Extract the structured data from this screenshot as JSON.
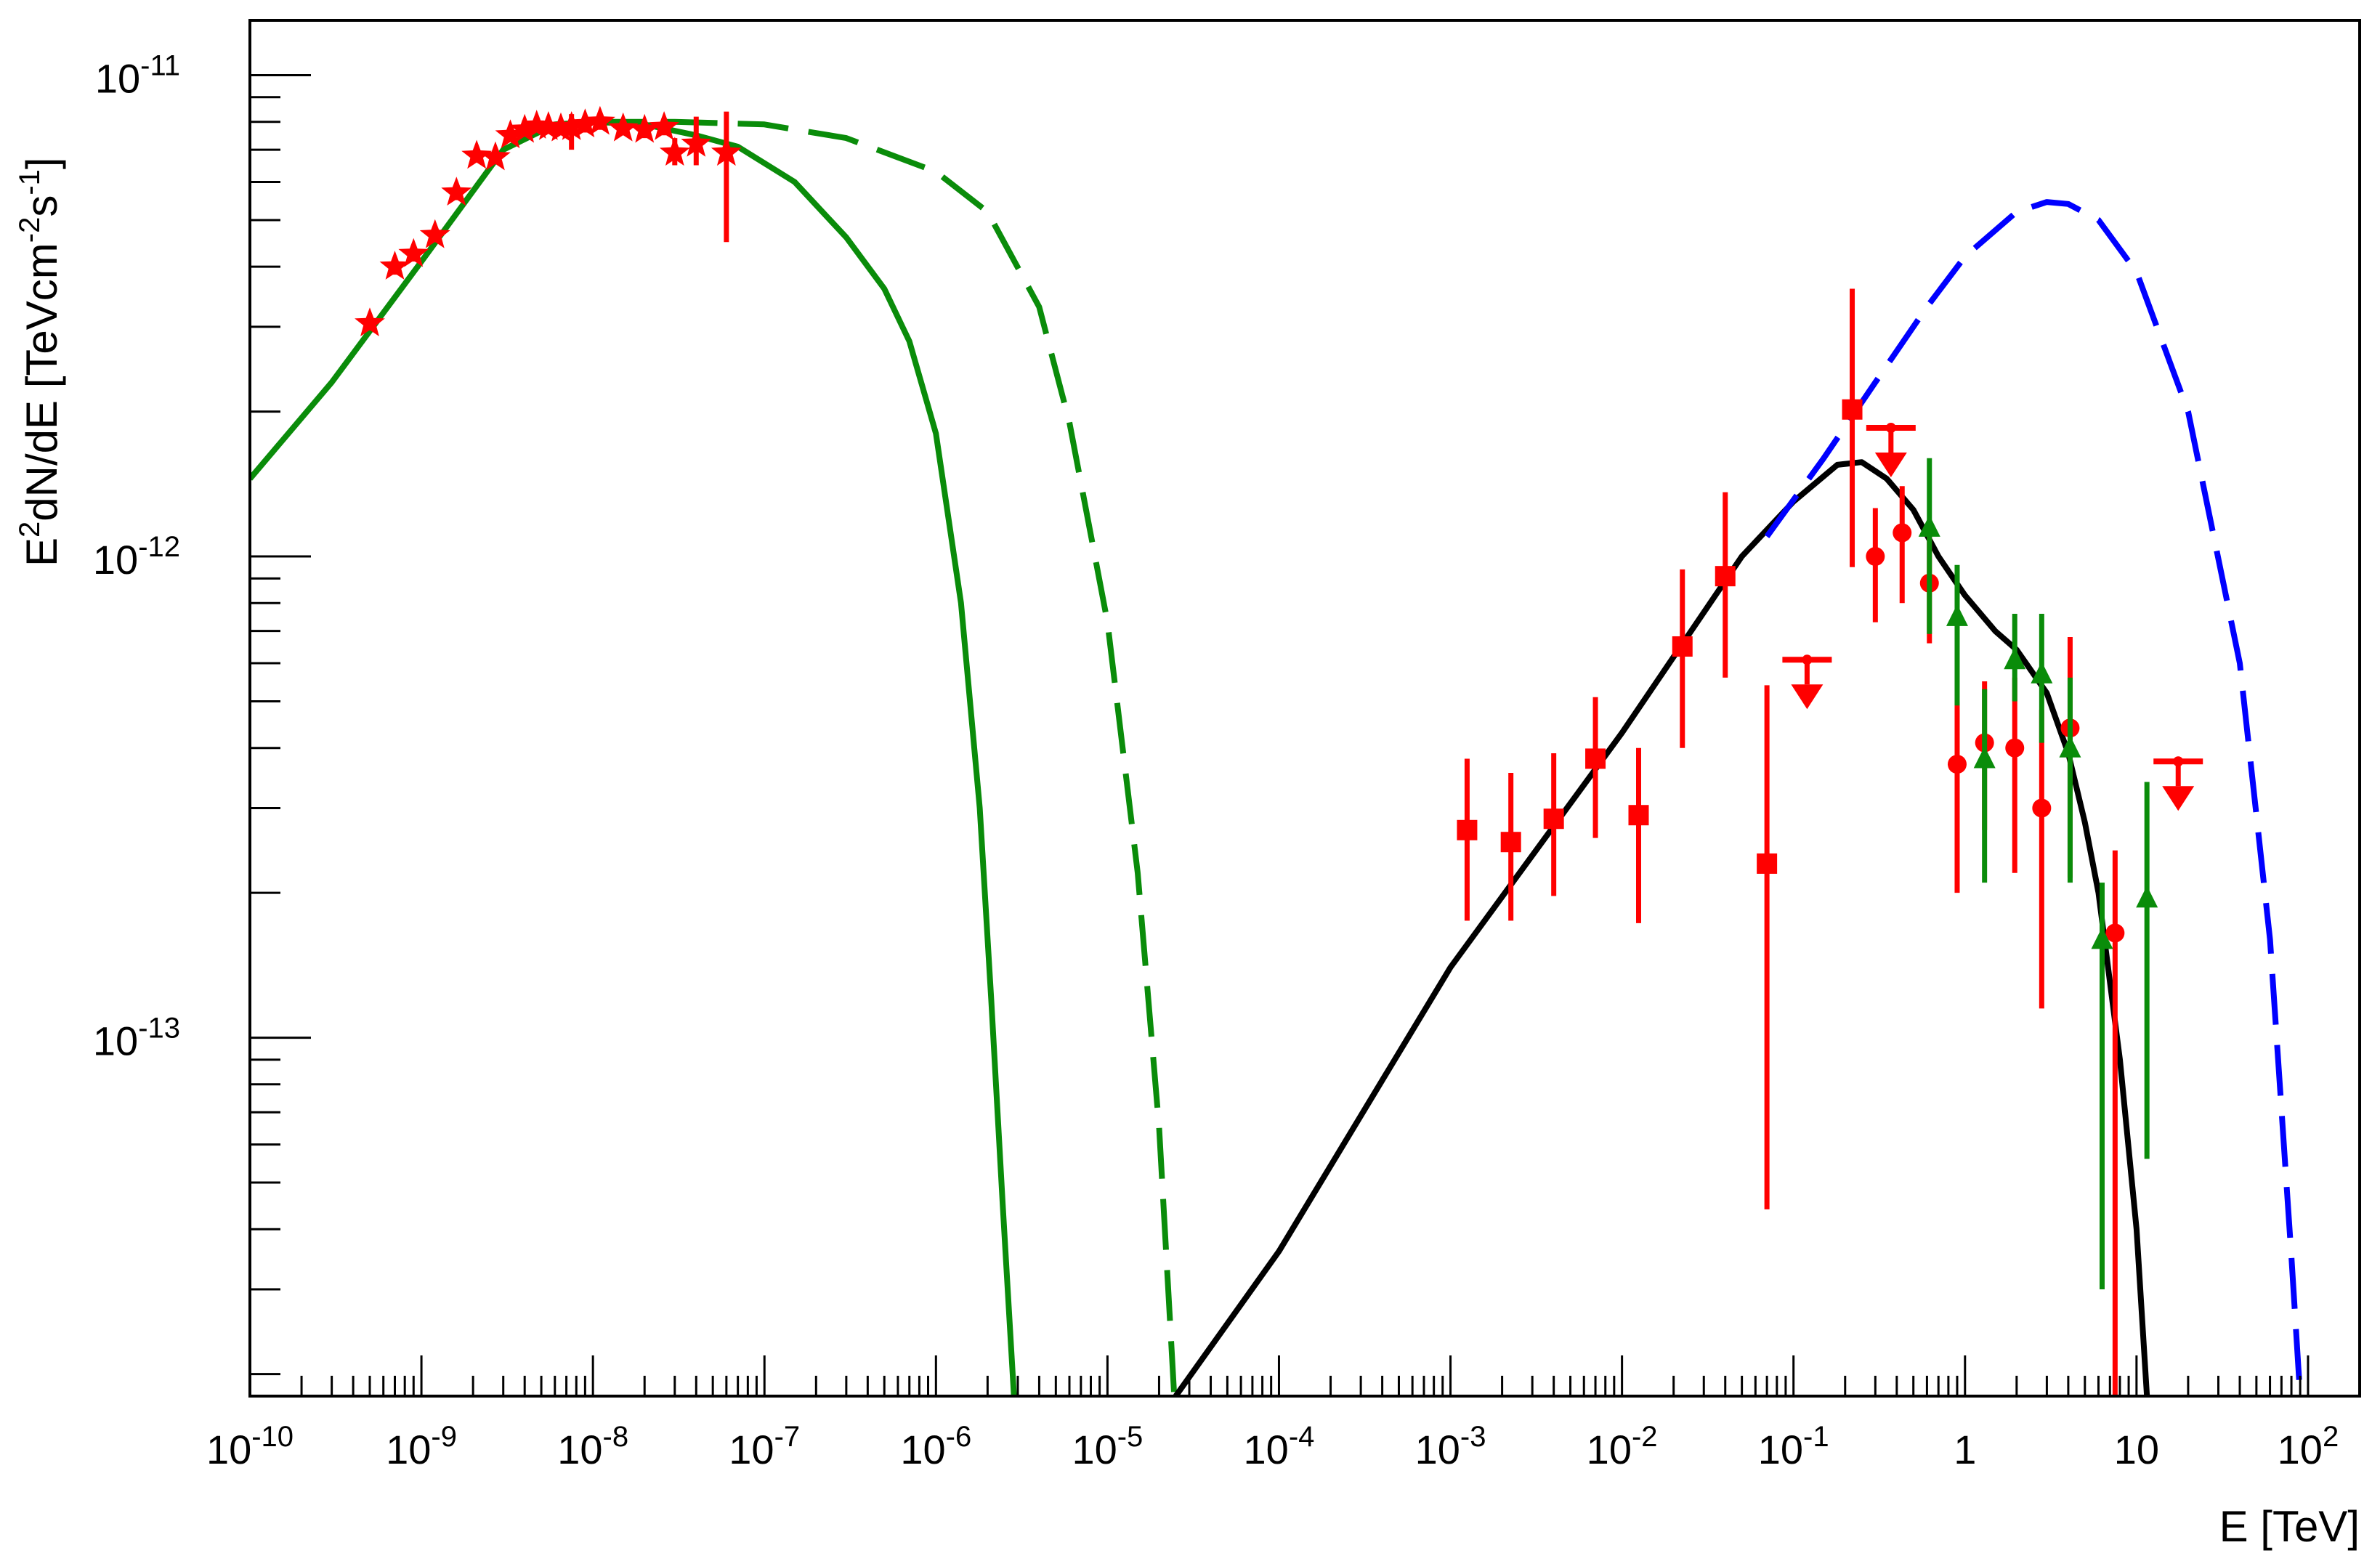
{
  "chart_data": {
    "type": "scatter",
    "xlabel": "E [TeV]",
    "ylabel_parts": [
      "E",
      "2",
      "dN/dE [TeVcm",
      "-2",
      "s",
      "-1",
      "]"
    ],
    "xscale": "log",
    "yscale": "log",
    "xlim": [
      1e-10,
      200
    ],
    "ylim": [
      1.8e-14,
      1.3e-11
    ],
    "x_tick_labels": [
      {
        "x": 1e-10,
        "base": "10",
        "exp": "-10"
      },
      {
        "x": 1e-09,
        "base": "10",
        "exp": "-9"
      },
      {
        "x": 1e-08,
        "base": "10",
        "exp": "-8"
      },
      {
        "x": 1e-07,
        "base": "10",
        "exp": "-7"
      },
      {
        "x": 1e-06,
        "base": "10",
        "exp": "-6"
      },
      {
        "x": 1e-05,
        "base": "10",
        "exp": "-5"
      },
      {
        "x": 0.0001,
        "base": "10",
        "exp": "-4"
      },
      {
        "x": 0.001,
        "base": "10",
        "exp": "-3"
      },
      {
        "x": 0.01,
        "base": "10",
        "exp": "-2"
      },
      {
        "x": 0.1,
        "base": "10",
        "exp": "-1"
      },
      {
        "x": 1,
        "base": "1",
        "exp": ""
      },
      {
        "x": 10,
        "base": "10",
        "exp": ""
      },
      {
        "x": 100,
        "base": "10",
        "exp": "2"
      }
    ],
    "y_tick_labels": [
      {
        "y": 1e-11,
        "base": "10",
        "exp": "-11"
      },
      {
        "y": 1e-12,
        "base": "10",
        "exp": "-12"
      },
      {
        "y": 1e-13,
        "base": "10",
        "exp": "-13"
      }
    ],
    "colors": {
      "red": "#ff0000",
      "green": "#0a8c0a",
      "blue": "#0000ff",
      "black": "#000000"
    },
    "series": [
      {
        "color": "red",
        "marker": "star",
        "points": [
          {
            "x": 5e-10,
            "y": 3.05e-12,
            "ylo": 2.95e-12,
            "yhi": 3.15e-12
          },
          {
            "x": 7e-10,
            "y": 4e-12,
            "ylo": 3.85e-12,
            "yhi": 4.15e-12
          },
          {
            "x": 9e-10,
            "y": 4.25e-12,
            "ylo": 4.1e-12,
            "yhi": 4.4e-12
          },
          {
            "x": 1.2e-09,
            "y": 4.65e-12,
            "ylo": 4.5e-12,
            "yhi": 4.8e-12
          },
          {
            "x": 1.6e-09,
            "y": 5.7e-12,
            "ylo": 5.5e-12,
            "yhi": 5.9e-12
          },
          {
            "x": 2.1e-09,
            "y": 6.8e-12,
            "ylo": 6.6e-12,
            "yhi": 7e-12
          },
          {
            "x": 2.7e-09,
            "y": 6.75e-12,
            "ylo": 6.55e-12,
            "yhi": 6.95e-12
          },
          {
            "x": 3.3e-09,
            "y": 7.5e-12,
            "ylo": 7.3e-12,
            "yhi": 7.7e-12
          },
          {
            "x": 4e-09,
            "y": 7.7e-12,
            "ylo": 7.45e-12,
            "yhi": 7.95e-12
          },
          {
            "x": 4.7e-09,
            "y": 7.85e-12,
            "ylo": 7.6e-12,
            "yhi": 8.1e-12
          },
          {
            "x": 5.5e-09,
            "y": 7.8e-12,
            "ylo": 7.55e-12,
            "yhi": 8.05e-12
          },
          {
            "x": 6.5e-09,
            "y": 7.75e-12,
            "ylo": 7.5e-12,
            "yhi": 8e-12
          },
          {
            "x": 7.5e-09,
            "y": 7.8e-12,
            "ylo": 7e-12,
            "yhi": 8.3e-12
          },
          {
            "x": 9e-09,
            "y": 7.9e-12,
            "ylo": 7.6e-12,
            "yhi": 8.2e-12
          },
          {
            "x": 1.1e-08,
            "y": 8e-12,
            "ylo": 7.7e-12,
            "yhi": 8.3e-12
          },
          {
            "x": 1.5e-08,
            "y": 7.75e-12,
            "ylo": 7.5e-12,
            "yhi": 8e-12
          },
          {
            "x": 2e-08,
            "y": 7.7e-12,
            "ylo": 7.4e-12,
            "yhi": 8e-12
          },
          {
            "x": 2.6e-08,
            "y": 7.8e-12,
            "ylo": 7.5e-12,
            "yhi": 8.1e-12
          },
          {
            "x": 3e-08,
            "y": 6.9e-12,
            "ylo": 6.5e-12,
            "yhi": 7.4e-12
          },
          {
            "x": 4e-08,
            "y": 7.2e-12,
            "ylo": 6.5e-12,
            "yhi": 8.2e-12
          },
          {
            "x": 6e-08,
            "y": 6.9e-12,
            "ylo": 4.5e-12,
            "yhi": 8.4e-12
          }
        ]
      },
      {
        "color": "red",
        "marker": "square",
        "points": [
          {
            "x": 0.00125,
            "y": 2.7e-13,
            "ylo": 1.75e-13,
            "yhi": 3.8e-13
          },
          {
            "x": 0.00225,
            "y": 2.55e-13,
            "ylo": 1.75e-13,
            "yhi": 3.55e-13
          },
          {
            "x": 0.004,
            "y": 2.85e-13,
            "ylo": 1.97e-13,
            "yhi": 3.9e-13
          },
          {
            "x": 0.007,
            "y": 3.8e-13,
            "ylo": 2.6e-13,
            "yhi": 5.1e-13
          },
          {
            "x": 0.0125,
            "y": 2.9e-13,
            "ylo": 1.73e-13,
            "yhi": 4e-13
          },
          {
            "x": 0.0225,
            "y": 6.5e-13,
            "ylo": 4e-13,
            "yhi": 9.4e-13
          },
          {
            "x": 0.04,
            "y": 9.1e-13,
            "ylo": 5.6e-13,
            "yhi": 1.36e-12
          },
          {
            "x": 0.07,
            "y": 2.3e-13,
            "ylo": 4.4e-14,
            "yhi": 5.4e-13
          },
          {
            "x": 0.22,
            "y": 2.02e-12,
            "ylo": 9.5e-13,
            "yhi": 3.6e-12
          }
        ]
      },
      {
        "color": "red",
        "marker": "circle",
        "points": [
          {
            "x": 0.3,
            "y": 1e-12,
            "ylo": 7.3e-13,
            "yhi": 1.26e-12
          },
          {
            "x": 0.43,
            "y": 1.12e-12,
            "ylo": 8e-13,
            "yhi": 1.4e-12
          },
          {
            "x": 0.62,
            "y": 8.8e-13,
            "ylo": 6.6e-13,
            "yhi": 1.1e-12
          },
          {
            "x": 0.9,
            "y": 3.7e-13,
            "ylo": 2e-13,
            "yhi": 5e-13
          },
          {
            "x": 1.3,
            "y": 4.1e-13,
            "ylo": 2.7e-13,
            "yhi": 5.5e-13
          },
          {
            "x": 1.95,
            "y": 4e-13,
            "ylo": 2.2e-13,
            "yhi": 5.6e-13
          },
          {
            "x": 2.8,
            "y": 3e-13,
            "ylo": 1.15e-13,
            "yhi": 4.8e-13
          },
          {
            "x": 4.1,
            "y": 4.4e-13,
            "ylo": 2.15e-13,
            "yhi": 6.8e-13
          },
          {
            "x": 7.5,
            "y": 1.65e-13,
            "ylo": 1.8e-14,
            "yhi": 2.45e-13
          }
        ]
      },
      {
        "color": "green",
        "marker": "triangle",
        "points": [
          {
            "x": 0.62,
            "y": 1.15e-12,
            "ylo": 6.9e-13,
            "yhi": 1.6e-12
          },
          {
            "x": 0.9,
            "y": 7.5e-13,
            "ylo": 4.9e-13,
            "yhi": 9.6e-13
          },
          {
            "x": 1.3,
            "y": 3.8e-13,
            "ylo": 2.1e-13,
            "yhi": 5.3e-13
          },
          {
            "x": 1.95,
            "y": 6.1e-13,
            "ylo": 5e-13,
            "yhi": 7.6e-13
          },
          {
            "x": 2.8,
            "y": 5.7e-13,
            "ylo": 4.1e-13,
            "yhi": 7.6e-13
          },
          {
            "x": 4.1,
            "y": 4e-13,
            "ylo": 2.1e-13,
            "yhi": 5.6e-13
          },
          {
            "x": 6.3,
            "y": 1.6e-13,
            "ylo": 3e-14,
            "yhi": 2.1e-13
          },
          {
            "x": 11.5,
            "y": 1.95e-13,
            "ylo": 5.6e-14,
            "yhi": 3.4e-13
          }
        ]
      },
      {
        "color": "red",
        "marker": "upper-limit",
        "points": [
          {
            "x": 0.12,
            "y": 6.1e-13
          },
          {
            "x": 0.37,
            "y": 1.85e-12
          },
          {
            "x": 17.5,
            "y": 3.75e-13
          }
        ]
      },
      {
        "color": "green",
        "line": "solid",
        "points": [
          [
            1e-10,
            1.45e-12
          ],
          [
            3e-10,
            2.3e-12
          ],
          [
            1e-09,
            4.1e-12
          ],
          [
            3e-09,
            7e-12
          ],
          [
            6e-09,
            7.9e-12
          ],
          [
            1e-08,
            8e-12
          ],
          [
            2e-08,
            7.9e-12
          ],
          [
            4e-08,
            7.5e-12
          ],
          [
            7e-08,
            7.1e-12
          ],
          [
            1.5e-07,
            6e-12
          ],
          [
            3e-07,
            4.6e-12
          ],
          [
            5e-07,
            3.6e-12
          ],
          [
            7e-07,
            2.8e-12
          ],
          [
            1e-06,
            1.8e-12
          ],
          [
            1.4e-06,
            8e-13
          ],
          [
            1.8e-06,
            3e-13
          ],
          [
            2.1e-06,
            1.2e-13
          ],
          [
            2.45e-06,
            4.5e-14
          ],
          [
            2.85e-06,
            1.8e-14
          ]
        ]
      },
      {
        "color": "green",
        "line": "dashed",
        "points": [
          [
            4e-09,
            7.7e-12
          ],
          [
            1e-08,
            8e-12
          ],
          [
            3e-08,
            8e-12
          ],
          [
            1e-07,
            7.9e-12
          ],
          [
            3e-07,
            7.4e-12
          ],
          [
            1e-06,
            6.3e-12
          ],
          [
            2e-06,
            5.2e-12
          ],
          [
            4e-06,
            3.3e-12
          ],
          [
            6e-06,
            1.9e-12
          ],
          [
            1e-05,
            7.3e-13
          ],
          [
            1.5e-05,
            2.2e-13
          ],
          [
            2e-05,
            6.5e-14
          ],
          [
            2.45e-05,
            1.8e-14
          ]
        ]
      },
      {
        "color": "black",
        "line": "solid",
        "points": [
          [
            2.5e-05,
            1.8e-14
          ],
          [
            0.0001,
            3.6e-14
          ],
          [
            0.001,
            1.4e-13
          ],
          [
            0.01,
            4.3e-13
          ],
          [
            0.05,
            1e-12
          ],
          [
            0.1,
            1.3e-12
          ],
          [
            0.18,
            1.55e-12
          ],
          [
            0.25,
            1.57e-12
          ],
          [
            0.35,
            1.45e-12
          ],
          [
            0.5,
            1.25e-12
          ],
          [
            0.7,
            1e-12
          ],
          [
            1.0,
            8.3e-13
          ],
          [
            1.5,
            7e-13
          ],
          [
            2.0,
            6.4e-13
          ],
          [
            3.0,
            5.2e-13
          ],
          [
            4.0,
            3.9e-13
          ],
          [
            5.0,
            2.8e-13
          ],
          [
            6.0,
            2e-13
          ],
          [
            8.0,
            9e-14
          ],
          [
            10.0,
            4e-14
          ],
          [
            11.5,
            1.8e-14
          ]
        ]
      },
      {
        "color": "blue",
        "line": "dashed",
        "points": [
          [
            0.07,
            1.1e-12
          ],
          [
            0.15,
            1.6e-12
          ],
          [
            0.3,
            2.3e-12
          ],
          [
            0.6,
            3.3e-12
          ],
          [
            1.0,
            4.2e-12
          ],
          [
            2.0,
            5.2e-12
          ],
          [
            3.0,
            5.45e-12
          ],
          [
            4.0,
            5.4e-12
          ],
          [
            6.0,
            5e-12
          ],
          [
            10.0,
            3.9e-12
          ],
          [
            20.0,
            2e-12
          ],
          [
            40.0,
            6e-13
          ],
          [
            60.0,
            1.6e-13
          ],
          [
            80.0,
            3.5e-14
          ],
          [
            90.0,
            1.8e-14
          ]
        ]
      }
    ]
  }
}
